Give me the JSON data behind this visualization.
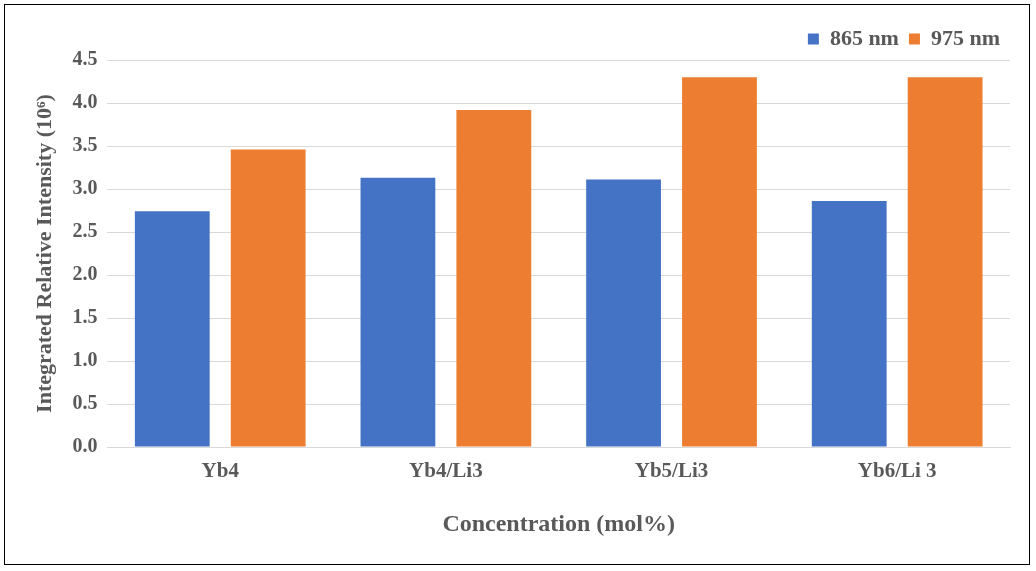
{
  "chart_data": {
    "type": "bar",
    "xlabel": "Concentration (mol%)",
    "ylabel": "Integrated Relative Intensity (10⁶)",
    "categories": [
      "Yb4",
      "Yb4/Li3",
      "Yb5/Li3",
      "Yb6/Li 3"
    ],
    "series": [
      {
        "name": "865 nm",
        "color": "#4472c4",
        "values": [
          2.74,
          3.13,
          3.11,
          2.86
        ]
      },
      {
        "name": "975 nm",
        "color": "#ed7d31",
        "values": [
          3.46,
          3.92,
          4.3,
          4.3
        ]
      }
    ],
    "ylim": [
      0,
      4.5
    ],
    "yticks": [
      {
        "value": 0,
        "label": "0.0"
      },
      {
        "value": 0.5,
        "label": "0.5"
      },
      {
        "value": 1,
        "label": "1.0"
      },
      {
        "value": 1.5,
        "label": "1.5"
      },
      {
        "value": 2,
        "label": "2.0"
      },
      {
        "value": 2.5,
        "label": "2.5"
      },
      {
        "value": 3,
        "label": "3.0"
      },
      {
        "value": 3.5,
        "label": "3.5"
      },
      {
        "value": 4,
        "label": "4.0"
      },
      {
        "value": 4.5,
        "label": "4.5"
      }
    ],
    "grid": "y",
    "legend": "top right"
  }
}
